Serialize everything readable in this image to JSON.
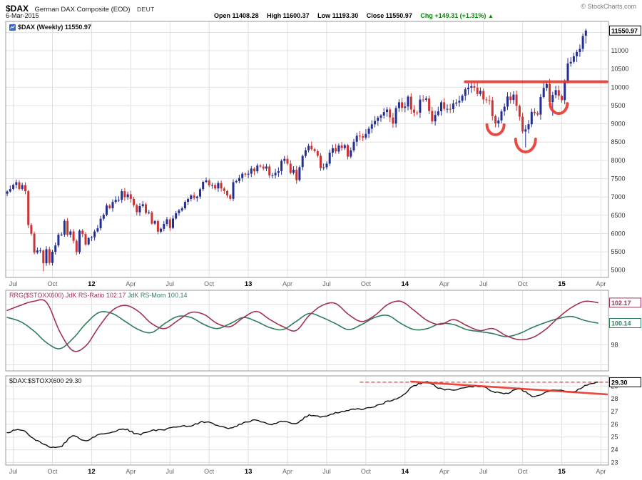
{
  "header": {
    "symbol": "$DAX",
    "title": "German DAX Composite (EOD)",
    "exchange": "DEUT",
    "copyright": "© StockCharts.com",
    "date": "6-Mar-2015",
    "ohlc": [
      {
        "label": "Open",
        "value": "11408.28"
      },
      {
        "label": "High",
        "value": "11600.37"
      },
      {
        "label": "Low",
        "value": "11193.30"
      },
      {
        "label": "Close",
        "value": "11550.97"
      }
    ],
    "change": {
      "label": "Chg",
      "value": "+149.31 (+1.31%)",
      "arrow": "▲"
    }
  },
  "panels": {
    "main": {
      "legend": "$DAX (Weekly) 11550.97",
      "axis_box": "11550.97"
    },
    "rrg": {
      "legend_ratio": "RRG($STOXX600) JdK RS-Ratio 102.17",
      "legend_mom": "JdK RS-Mom 100.14",
      "axis_boxes": [
        "102.17",
        "100.14"
      ]
    },
    "ratio": {
      "legend": "$DAX:$STOXX600 29.30",
      "axis_box": "29.30"
    }
  },
  "colors": {
    "candle_up": "#232e92",
    "candle_down": "#cc3333",
    "annotation": "#e8362b",
    "rs_ratio": "#a03354",
    "rs_mom": "#2f7e5a",
    "ratio_line": "#111111",
    "grid": "#e0e0e0",
    "panel_border": "#999999",
    "axis_text": "#333333",
    "month_text": "#666666",
    "year_text": "#000000",
    "change_green": "#008800"
  },
  "chart_data": [
    {
      "type": "bar",
      "subtype": "weekly-candlestick",
      "title": "$DAX (Weekly)",
      "last_price": 11550.97,
      "x_start": "Jun-2011",
      "x_end": "6-Mar-2015",
      "ylim": [
        4800,
        11800
      ],
      "y_grid": [
        5000,
        5500,
        6000,
        6500,
        7000,
        7500,
        8000,
        8500,
        9000,
        9500,
        10000,
        10500,
        11000,
        11500
      ],
      "y_tick_labels": [
        5000,
        5500,
        6000,
        6500,
        7000,
        7500,
        8000,
        8500,
        9000,
        9500,
        10000,
        10500,
        11000
      ],
      "x_ticks": [
        {
          "label": "Jul",
          "week": 2
        },
        {
          "label": "Oct",
          "week": 15
        },
        {
          "label": "12",
          "week": 28,
          "is_year": true
        },
        {
          "label": "Apr",
          "week": 41
        },
        {
          "label": "Jul",
          "week": 54
        },
        {
          "label": "Oct",
          "week": 67
        },
        {
          "label": "13",
          "week": 80,
          "is_year": true
        },
        {
          "label": "Apr",
          "week": 93
        },
        {
          "label": "Jul",
          "week": 106
        },
        {
          "label": "Oct",
          "week": 119
        },
        {
          "label": "14",
          "week": 132,
          "is_year": true
        },
        {
          "label": "Apr",
          "week": 145
        },
        {
          "label": "Jul",
          "week": 158
        },
        {
          "label": "Oct",
          "week": 171
        },
        {
          "label": "15",
          "week": 184,
          "is_year": true
        },
        {
          "label": "Apr",
          "week": 197
        }
      ],
      "weekly_closes": [
        7150,
        7216,
        7330,
        7403,
        7220,
        7326,
        7158,
        6236,
        5997,
        5480,
        5537,
        5538,
        5189,
        5573,
        5196,
        5502,
        5675,
        5967,
        5971,
        6346,
        5966,
        6057,
        5800,
        5492,
        6080,
        5986,
        5702,
        5878,
        5898,
        6057,
        6143,
        6404,
        6512,
        6766,
        6693,
        6864,
        6921,
        6922,
        7157,
        6996,
        7072,
        6947,
        6775,
        6583,
        6750,
        6801,
        6561,
        6579,
        6271,
        6339,
        6050,
        6131,
        6263,
        6390,
        6152,
        6410,
        6557,
        6630,
        6689,
        6866,
        6944,
        7040,
        6971,
        7011,
        7214,
        7412,
        7452,
        7320,
        7326,
        7232,
        7381,
        7232,
        7163,
        7043,
        6951,
        7405,
        7435,
        7518,
        7636,
        7612,
        7636,
        7776,
        7702,
        7858,
        7833,
        7776,
        7834,
        7589,
        7593,
        7661,
        7708,
        7986,
        8043,
        7911,
        7659,
        7745,
        7460,
        7815,
        8122,
        8279,
        8398,
        8306,
        8254,
        8127,
        7789,
        7810,
        7912,
        8212,
        8332,
        8245,
        8408,
        8338,
        8417,
        8103,
        8276,
        8509,
        8675,
        8662,
        8623,
        8725,
        8865,
        8986,
        9078,
        9168,
        9226,
        9321,
        9391,
        9172,
        9006,
        9428,
        9589,
        9435,
        9473,
        9743,
        9392,
        9306,
        9301,
        9662,
        9656,
        9692,
        9351,
        9065,
        9243,
        9342,
        9588,
        9409,
        9410,
        9401,
        9556,
        9581,
        9629,
        9768,
        9943,
        9987,
        10029,
        9987,
        9815,
        9898,
        9666,
        9645,
        9644,
        9210,
        9009,
        9093,
        9339,
        9470,
        9747,
        9651,
        9799,
        9490,
        9196,
        8788,
        8850,
        8988,
        9327,
        9292,
        9253,
        9733,
        9981,
        10087,
        9595,
        9787,
        9922,
        9765,
        9648,
        10167,
        10650,
        10694,
        10846,
        10963,
        11050,
        11401,
        11551
      ],
      "ohlc_overrides": {
        "12": {
          "low": 4966
        },
        "162": {
          "low": 8903
        },
        "172": {
          "low": 8354
        },
        "181": {
          "low": 9219
        },
        "192": {
          "open": 11408.28,
          "high": 11600.37,
          "low": 11193.3,
          "close": 11550.97
        }
      },
      "annotations": {
        "resistance_line": {
          "price": 10150,
          "from_week": 152,
          "to_week": 199
        },
        "circles": [
          {
            "week": 162,
            "price": 8800
          },
          {
            "week": 172,
            "price": 8330
          },
          {
            "week": 183,
            "price": 9380
          }
        ]
      }
    },
    {
      "type": "line",
      "title": "RRG($STOXX600)",
      "ylim": [
        95.4,
        103.4
      ],
      "y_grid": [
        96,
        98,
        100,
        102
      ],
      "y_tick_labels": [
        98
      ],
      "interval": "monthly",
      "series": [
        {
          "name": "JdK RS-Ratio",
          "last": 102.17,
          "monthly_values": [
            101.4,
            101.9,
            102.3,
            102.2,
            99.3,
            97.4,
            97.9,
            99.8,
            101.4,
            101.9,
            101.3,
            100.1,
            99.6,
            100.4,
            101.2,
            101.0,
            100.1,
            99.8,
            100.7,
            101.3,
            100.5,
            99.8,
            99.4,
            100.9,
            101.9,
            102.1,
            101.0,
            100.3,
            100.9,
            102.0,
            102.3,
            101.4,
            100.4,
            100.0,
            100.5,
            99.9,
            99.4,
            99.6,
            98.9,
            98.5,
            98.7,
            99.5,
            100.7,
            101.7,
            102.3,
            102.17
          ]
        },
        {
          "name": "JdK RS-Mom",
          "last": 100.14,
          "monthly_values": [
            100.7,
            100.3,
            99.4,
            98.2,
            97.6,
            98.6,
            100.1,
            101.2,
            101.1,
            100.3,
            99.5,
            99.2,
            100.1,
            100.8,
            100.7,
            100.0,
            99.6,
            100.1,
            100.7,
            100.3,
            99.7,
            99.5,
            100.3,
            101.1,
            100.7,
            100.1,
            99.5,
            100.0,
            100.7,
            100.9,
            100.1,
            99.5,
            99.6,
            100.1,
            100.0,
            99.5,
            99.3,
            99.1,
            98.8,
            99.1,
            99.7,
            100.2,
            100.6,
            100.8,
            100.4,
            100.14
          ]
        }
      ]
    },
    {
      "type": "line",
      "title": "$DAX:$STOXX600",
      "last": 29.3,
      "ylim": [
        22.8,
        29.8
      ],
      "y_grid": [
        23,
        24,
        25,
        26,
        27,
        28,
        29
      ],
      "y_tick_labels": [
        23,
        24,
        25,
        26,
        27,
        28,
        29
      ],
      "interval": "monthly",
      "monthly_values": [
        25.3,
        25.6,
        24.9,
        24.3,
        24.2,
        25.1,
        24.7,
        25.2,
        25.4,
        25.6,
        25.2,
        25.5,
        25.6,
        25.8,
        25.9,
        26.2,
        25.9,
        25.7,
        26.1,
        26.3,
        26.0,
        26.2,
        26.1,
        26.7,
        26.6,
        26.9,
        27.1,
        27.2,
        27.4,
        27.8,
        28.2,
        29.0,
        29.3,
        28.8,
        28.7,
        28.9,
        29.0,
        28.6,
        28.4,
        28.8,
        28.2,
        28.5,
        28.7,
        28.5,
        29.0,
        29.3
      ],
      "annotations": {
        "dashed_level": {
          "price": 29.3,
          "from_week": 117,
          "to_week": 199.5
        },
        "trendline": {
          "from_week": 134,
          "from_price": 29.35,
          "to_week": 199,
          "to_price": 28.35
        }
      }
    }
  ]
}
